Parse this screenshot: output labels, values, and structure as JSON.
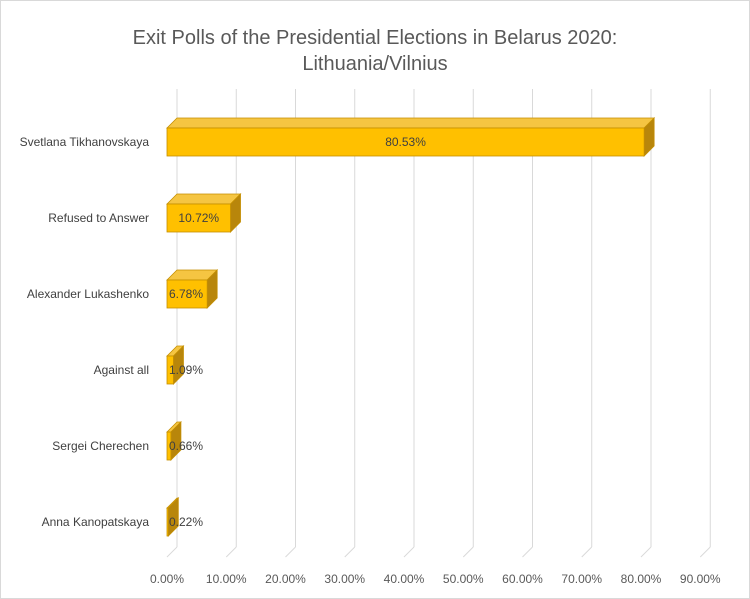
{
  "chart_data": {
    "type": "bar",
    "orientation": "horizontal",
    "style": "3d",
    "title_lines": [
      "Exit Polls of the Presidential Elections in Belarus 2020:",
      "Lithuania/Vilnius"
    ],
    "categories": [
      "Svetlana Tikhanovskaya",
      "Refused to Answer",
      "Alexander Lukashenko",
      "Against all",
      "Sergei Cherechen",
      "Anna Kanopatskaya"
    ],
    "values": [
      80.53,
      10.72,
      6.78,
      1.09,
      0.66,
      0.22
    ],
    "data_labels": [
      "80.53%",
      "10.72%",
      "6.78%",
      "1.09%",
      "0.66%",
      "0.22%"
    ],
    "x_ticks": [
      "0.00%",
      "10.00%",
      "20.00%",
      "30.00%",
      "40.00%",
      "50.00%",
      "60.00%",
      "70.00%",
      "80.00%",
      "90.00%"
    ],
    "xlim": [
      0,
      90
    ],
    "grid": true,
    "legend": "none",
    "colors": {
      "bar_front": "#ffc000",
      "bar_top": "#f5c542",
      "bar_side": "#b8860b",
      "bar_stroke": "#c58f00",
      "grid": "#d9d9d9"
    }
  }
}
